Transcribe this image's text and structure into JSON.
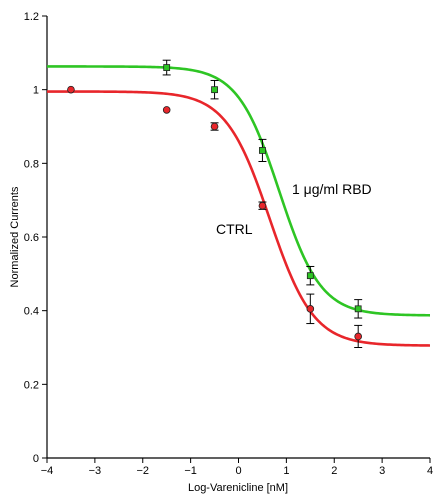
{
  "chart_data": {
    "type": "scatter",
    "title": "",
    "xlabel": "Log-Varenicline [nM]",
    "ylabel": "Normalized Currents",
    "xlim": [
      -4,
      4
    ],
    "ylim": [
      0,
      1.2
    ],
    "xticks": [
      -4,
      -3,
      -2,
      -1,
      0,
      1,
      2,
      3,
      4
    ],
    "xtick_labels": [
      "−4",
      "−3",
      "−2",
      "−1",
      "0",
      "1",
      "2",
      "3",
      "4"
    ],
    "yticks": [
      0,
      0.2,
      0.4,
      0.6,
      0.8,
      1.0,
      1.2
    ],
    "ytick_labels": [
      "0",
      "0.2",
      "0.4",
      "0.6",
      "0.8",
      "1",
      "1.2"
    ],
    "grid": false,
    "series": [
      {
        "label": "CTRL",
        "color": "#e8262b",
        "marker": "circle",
        "x": [
          -3.5,
          -1.5,
          -0.5,
          0.5,
          1.5,
          2.5
        ],
        "y": [
          1.0,
          0.945,
          0.9,
          0.685,
          0.405,
          0.33
        ],
        "err": [
          0,
          0,
          0.01,
          0.01,
          0.04,
          0.03
        ],
        "fit": {
          "top": 0.995,
          "bottom": 0.305,
          "logEC50": 0.65,
          "hill": 0.95
        }
      },
      {
        "label": "1 μg/ml RBD",
        "color": "#2ec524",
        "marker": "square",
        "x": [
          -1.5,
          -0.5,
          0.5,
          1.5,
          2.5
        ],
        "y": [
          1.06,
          1.0,
          0.835,
          0.495,
          0.405
        ],
        "err": [
          0.02,
          0.025,
          0.03,
          0.025,
          0.025
        ],
        "fit": {
          "top": 1.063,
          "bottom": 0.387,
          "logEC50": 0.85,
          "hill": 1.0
        }
      }
    ]
  }
}
